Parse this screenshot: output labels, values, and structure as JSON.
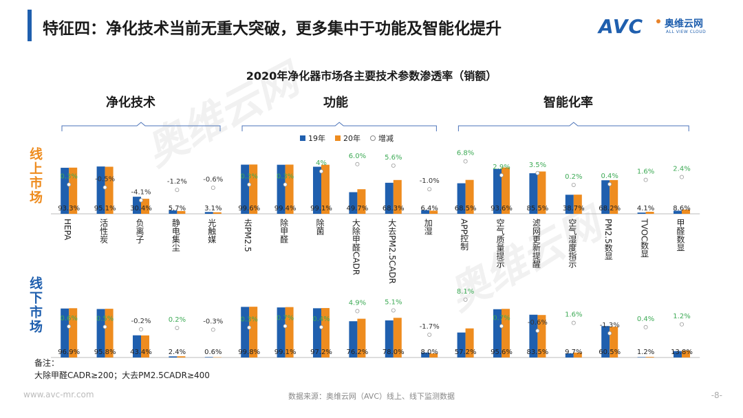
{
  "title": "特征四：净化技术当前无重大突破，更多集中于功能及智能化提升",
  "logo": {
    "main": "AVC",
    "cn": "奥维云网",
    "en": "ALL VIEW CLOUD"
  },
  "watermark": {
    "text": "奥维云网",
    "sub": "ALL VIEW CLOUD"
  },
  "groups": {
    "tech": "净化技术",
    "func": "功能",
    "smart": "智能化率"
  },
  "side_labels": {
    "online": "线上市场",
    "offline": "线下市场"
  },
  "legend": {
    "y19": "19年",
    "y20": "20年",
    "delta": "增减"
  },
  "colors": {
    "y19": "#1f5fae",
    "y20": "#ee8c1f",
    "positive": "#3daa55",
    "negative": "#333333"
  },
  "note": {
    "label": "备注：",
    "text": "大除甲醛CADR≥200；大去PM2.5CADR≥400"
  },
  "footer": {
    "url": "www.avc-mr.com",
    "source": "数据来源：奥维云网（AVC）线上、线下监测数据",
    "page": "-8-"
  },
  "chart_data": {
    "type": "bar",
    "title": "2020年净化器市场各主要技术参数渗透率（销额）",
    "categories": [
      "HEPA",
      "活性炭",
      "负离子",
      "静电集尘",
      "光触媒",
      "去PM2.5",
      "除甲醛",
      "除菌",
      "大除甲醛CADR",
      "大去PM2.5CADR",
      "加湿",
      "APP控制",
      "空气质量提示",
      "滤网更新提醒",
      "空气湿度指示",
      "PM2.5数显",
      "TVOC数显",
      "甲醛数显"
    ],
    "online": {
      "series": [
        {
          "name": "19年",
          "values": [
            93.0,
            95.6,
            34.5,
            6.9,
            3.7,
            99.3,
            99.1,
            95.1,
            43.7,
            62.7,
            7.4,
            61.7,
            90.7,
            82.0,
            38.5,
            67.8,
            2.5,
            6.2
          ]
        },
        {
          "name": "20年",
          "values": [
            93.3,
            95.1,
            30.4,
            5.7,
            3.1,
            99.6,
            99.4,
            99.1,
            49.7,
            68.3,
            6.4,
            68.5,
            93.6,
            85.5,
            38.7,
            68.2,
            4.1,
            8.6
          ]
        }
      ],
      "value_labels": [
        "93.3%",
        "95.1%",
        "30.4%",
        "5.7%",
        "3.1%",
        "99.6%",
        "99.4%",
        "99.1%",
        "49.7%",
        "68.3%",
        "6.4%",
        "68.5%",
        "93.6%",
        "85.5%",
        "38.7%",
        "68.2%",
        "4.1%",
        "8.6%"
      ],
      "delta": [
        0.3,
        -0.5,
        -4.1,
        -1.2,
        -0.6,
        0.3,
        0.3,
        4.0,
        6.0,
        5.6,
        -1.0,
        6.8,
        2.9,
        3.5,
        0.2,
        0.4,
        1.6,
        2.4
      ],
      "delta_labels": [
        "0.3%",
        "-0.5%",
        "-4.1%",
        "-1.2%",
        "-0.6%",
        "0.3%",
        "0.3%",
        "4%",
        "6.0%",
        "5.6%",
        "-1.0%",
        "6.8%",
        "2.9%",
        "3.5%",
        "0.2%",
        "0.4%",
        "1.6%",
        "2.4%"
      ]
    },
    "offline": {
      "series": [
        {
          "name": "19年",
          "values": [
            96.3,
            95.3,
            43.6,
            2.2,
            0.9,
            99.5,
            98.4,
            96.8,
            71.3,
            72.9,
            9.7,
            49.1,
            94.9,
            84.1,
            8.1,
            61.8,
            0.8,
            12.6
          ]
        },
        {
          "name": "20年",
          "values": [
            96.9,
            95.8,
            43.4,
            2.4,
            0.6,
            99.8,
            99.1,
            97.2,
            76.2,
            78.0,
            8.0,
            57.2,
            95.6,
            83.5,
            9.7,
            60.5,
            1.2,
            13.8
          ]
        }
      ],
      "value_labels": [
        "96.9%",
        "95.8%",
        "43.4%",
        "2.4%",
        "0.6%",
        "99.8%",
        "99.1%",
        "97.2%",
        "76.2%",
        "78.0%",
        "8.0%",
        "57.2%",
        "95.6%",
        "83.5%",
        "9.7%",
        "60.5%",
        "1.2%",
        "13.8%"
      ],
      "delta": [
        0.6,
        0.5,
        -0.2,
        0.2,
        -0.3,
        0.3,
        0.7,
        0.4,
        4.9,
        5.1,
        -1.7,
        8.1,
        0.7,
        -0.6,
        1.6,
        -1.3,
        0.4,
        1.2
      ],
      "delta_labels": [
        "0.6%",
        "0.5%",
        "-0.2%",
        "0.2%",
        "-0.3%",
        "0.3%",
        "0.7%",
        "0.4%",
        "4.9%",
        "5.1%",
        "-1.7%",
        "8.1%",
        "0.7%",
        "-0.6%",
        "1.6%",
        "-1.3%",
        "0.4%",
        "1.2%"
      ]
    },
    "ylim": [
      0,
      100
    ],
    "delta_ylim": [
      -5,
      10
    ],
    "legend": [
      "19年",
      "20年",
      "增减"
    ]
  }
}
